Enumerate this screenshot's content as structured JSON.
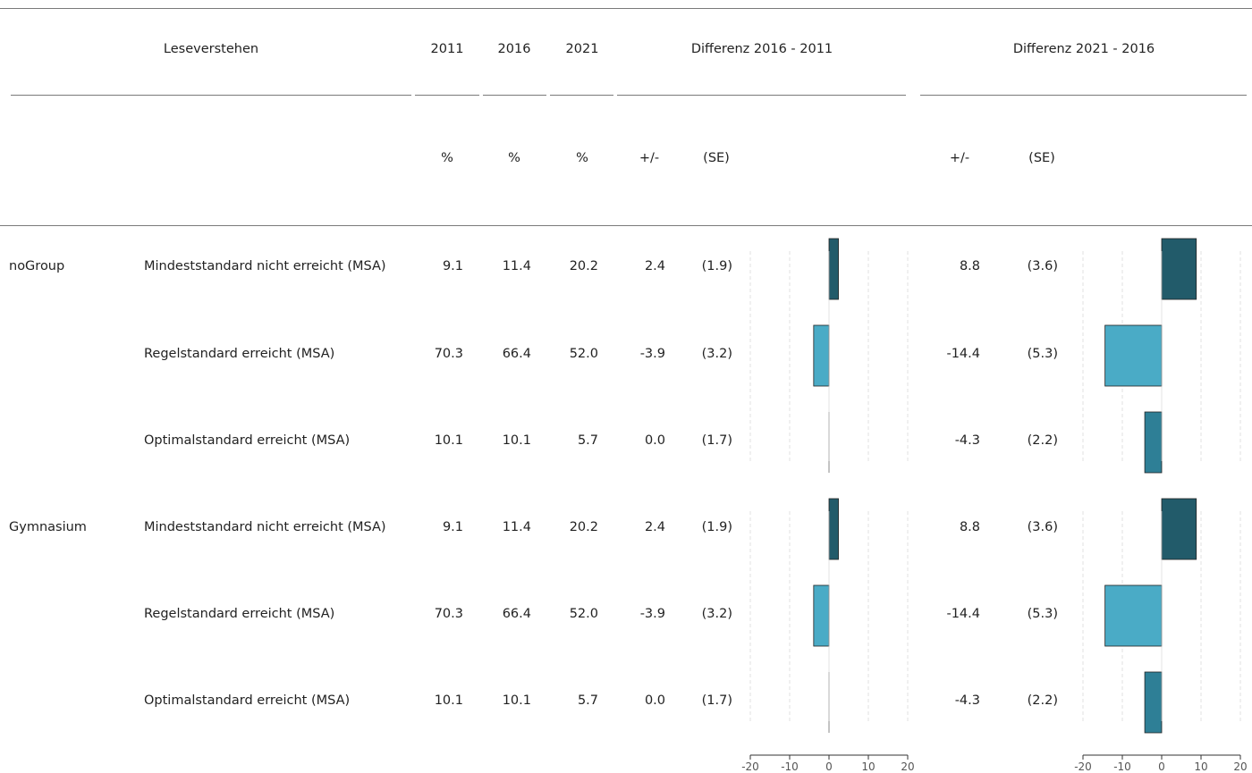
{
  "chart_data": {
    "type": "table",
    "title": "",
    "header": {
      "label": "Leseverstehen",
      "years": [
        "2011",
        "2016",
        "2021"
      ],
      "diff_groups": [
        "Differenz 2016 - 2011",
        "Differenz 2021 - 2016"
      ]
    },
    "subheader": {
      "years": [
        "%",
        "%",
        "%"
      ],
      "diff1": [
        "+/-",
        "(SE)"
      ],
      "diff2": [
        "+/-",
        "(SE)"
      ]
    },
    "groups": [
      {
        "name": "noGroup",
        "rows": [
          {
            "label": "Mindeststandard nicht erreicht (MSA)",
            "y2011": "9.1",
            "y2016": "11.4",
            "y2021": "20.2",
            "d1": "2.4",
            "se1": "(1.9)",
            "d2": "8.8",
            "se2": "(3.6)"
          },
          {
            "label": "Regelstandard erreicht (MSA)",
            "y2011": "70.3",
            "y2016": "66.4",
            "y2021": "52.0",
            "d1": "-3.9",
            "se1": "(3.2)",
            "d2": "-14.4",
            "se2": "(5.3)"
          },
          {
            "label": "Optimalstandard erreicht (MSA)",
            "y2011": "10.1",
            "y2016": "10.1",
            "y2021": "5.7",
            "d1": "0.0",
            "se1": "(1.7)",
            "d2": "-4.3",
            "se2": "(2.2)"
          }
        ]
      },
      {
        "name": "Gymnasium",
        "rows": [
          {
            "label": "Mindeststandard nicht erreicht (MSA)",
            "y2011": "9.1",
            "y2016": "11.4",
            "y2021": "20.2",
            "d1": "2.4",
            "se1": "(1.9)",
            "d2": "8.8",
            "se2": "(3.6)"
          },
          {
            "label": "Regelstandard erreicht (MSA)",
            "y2011": "70.3",
            "y2016": "66.4",
            "y2021": "52.0",
            "d1": "-3.9",
            "se1": "(3.2)",
            "d2": "-14.4",
            "se2": "(5.3)"
          },
          {
            "label": "Optimalstandard erreicht (MSA)",
            "y2011": "10.1",
            "y2016": "10.1",
            "y2021": "5.7",
            "d1": "0.0",
            "se1": "(1.7)",
            "d2": "-4.3",
            "se2": "(2.2)"
          }
        ]
      }
    ],
    "bar_axis": {
      "xlim": [
        -20,
        20
      ],
      "ticks": [
        "-20",
        "-10",
        "0",
        "10",
        "20"
      ],
      "gridlines": "dashed"
    },
    "row_colors": [
      "#225b6a",
      "#4aabc6",
      "#2e7f96"
    ],
    "bar_border": "#222222"
  }
}
